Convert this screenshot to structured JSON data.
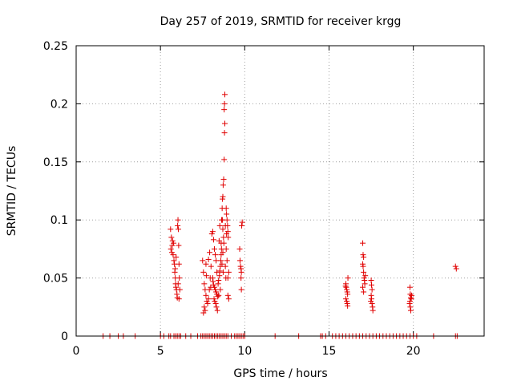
{
  "chart_data": {
    "type": "scatter",
    "title": "Day 257 of 2019, SRMTID for receiver krgg",
    "xlabel": "GPS time / hours",
    "ylabel": "SRMTID / TECUs",
    "xlim": [
      0,
      24.2
    ],
    "ylim": [
      0,
      0.25
    ],
    "xticks": [
      0,
      5,
      10,
      15,
      20
    ],
    "xtick_labels": [
      "0",
      "5",
      "10",
      "15",
      "20"
    ],
    "yticks": [
      0,
      0.05,
      0.1,
      0.15,
      0.2,
      0.25
    ],
    "ytick_labels": [
      "0",
      "0.05",
      "0.1",
      "0.15",
      "0.2",
      "0.25"
    ],
    "grid": true,
    "marker": "+",
    "series": [
      {
        "name": "SRMTID",
        "color": "#e00000",
        "points": [
          [
            1.6,
            0
          ],
          [
            2.0,
            0
          ],
          [
            2.5,
            0
          ],
          [
            2.8,
            0
          ],
          [
            3.5,
            0
          ],
          [
            5.0,
            0
          ],
          [
            5.2,
            0
          ],
          [
            5.5,
            0
          ],
          [
            5.6,
            0
          ],
          [
            5.8,
            0
          ],
          [
            5.9,
            0
          ],
          [
            6.0,
            0
          ],
          [
            6.1,
            0
          ],
          [
            6.2,
            0
          ],
          [
            6.5,
            0
          ],
          [
            6.8,
            0
          ],
          [
            7.2,
            0
          ],
          [
            7.4,
            0
          ],
          [
            7.5,
            0
          ],
          [
            7.6,
            0
          ],
          [
            7.7,
            0
          ],
          [
            7.8,
            0
          ],
          [
            7.9,
            0
          ],
          [
            8.0,
            0
          ],
          [
            8.1,
            0
          ],
          [
            8.2,
            0
          ],
          [
            8.3,
            0
          ],
          [
            8.4,
            0
          ],
          [
            8.5,
            0
          ],
          [
            8.6,
            0
          ],
          [
            8.7,
            0
          ],
          [
            8.8,
            0
          ],
          [
            8.9,
            0
          ],
          [
            9.0,
            0
          ],
          [
            9.2,
            0
          ],
          [
            9.4,
            0
          ],
          [
            9.5,
            0
          ],
          [
            9.6,
            0
          ],
          [
            9.7,
            0
          ],
          [
            9.8,
            0
          ],
          [
            9.9,
            0
          ],
          [
            10.0,
            0
          ],
          [
            11.8,
            0
          ],
          [
            13.2,
            0
          ],
          [
            14.5,
            0
          ],
          [
            14.6,
            0
          ],
          [
            14.8,
            0
          ],
          [
            15.2,
            0
          ],
          [
            15.4,
            0
          ],
          [
            15.6,
            0
          ],
          [
            15.8,
            0
          ],
          [
            16.0,
            0
          ],
          [
            16.2,
            0
          ],
          [
            16.4,
            0
          ],
          [
            16.6,
            0
          ],
          [
            16.8,
            0
          ],
          [
            17.0,
            0
          ],
          [
            17.2,
            0
          ],
          [
            17.4,
            0
          ],
          [
            17.6,
            0
          ],
          [
            17.8,
            0
          ],
          [
            18.0,
            0
          ],
          [
            18.2,
            0
          ],
          [
            18.4,
            0
          ],
          [
            18.6,
            0
          ],
          [
            18.8,
            0
          ],
          [
            19.0,
            0
          ],
          [
            19.2,
            0
          ],
          [
            19.4,
            0
          ],
          [
            19.6,
            0
          ],
          [
            19.8,
            0
          ],
          [
            20.0,
            0
          ],
          [
            20.2,
            0
          ],
          [
            21.2,
            0
          ],
          [
            22.5,
            0
          ],
          [
            22.6,
            0
          ],
          [
            5.6,
            0.092
          ],
          [
            5.65,
            0.085
          ],
          [
            5.7,
            0.078
          ],
          [
            5.62,
            0.075
          ],
          [
            5.68,
            0.072
          ],
          [
            5.75,
            0.07
          ],
          [
            5.8,
            0.065
          ],
          [
            5.72,
            0.082
          ],
          [
            5.78,
            0.08
          ],
          [
            5.83,
            0.062
          ],
          [
            5.85,
            0.055
          ],
          [
            5.88,
            0.05
          ],
          [
            5.9,
            0.045
          ],
          [
            5.92,
            0.042
          ],
          [
            5.95,
            0.04
          ],
          [
            5.98,
            0.036
          ],
          [
            6.0,
            0.033
          ],
          [
            6.05,
            0.045
          ],
          [
            6.02,
            0.095
          ],
          [
            6.04,
            0.1
          ],
          [
            6.06,
            0.092
          ],
          [
            6.08,
            0.078
          ],
          [
            6.1,
            0.062
          ],
          [
            6.12,
            0.05
          ],
          [
            6.15,
            0.04
          ],
          [
            6.1,
            0.032
          ],
          [
            5.87,
            0.058
          ],
          [
            5.93,
            0.068
          ],
          [
            7.5,
            0.065
          ],
          [
            7.55,
            0.055
          ],
          [
            7.6,
            0.045
          ],
          [
            7.65,
            0.04
          ],
          [
            7.7,
            0.035
          ],
          [
            7.75,
            0.03
          ],
          [
            7.6,
            0.025
          ],
          [
            7.65,
            0.022
          ],
          [
            7.55,
            0.02
          ],
          [
            7.8,
            0.028
          ],
          [
            7.85,
            0.032
          ],
          [
            7.9,
            0.04
          ],
          [
            7.95,
            0.05
          ],
          [
            8.0,
            0.06
          ],
          [
            7.7,
            0.062
          ],
          [
            7.85,
            0.066
          ],
          [
            8.05,
            0.088
          ],
          [
            8.1,
            0.09
          ],
          [
            8.15,
            0.083
          ],
          [
            8.2,
            0.075
          ],
          [
            8.25,
            0.07
          ],
          [
            8.3,
            0.065
          ],
          [
            8.35,
            0.055
          ],
          [
            8.1,
            0.05
          ],
          [
            8.12,
            0.047
          ],
          [
            8.15,
            0.044
          ],
          [
            8.2,
            0.042
          ],
          [
            8.25,
            0.04
          ],
          [
            8.3,
            0.038
          ],
          [
            8.35,
            0.036
          ],
          [
            8.4,
            0.034
          ],
          [
            8.18,
            0.032
          ],
          [
            8.22,
            0.03
          ],
          [
            8.28,
            0.028
          ],
          [
            8.32,
            0.025
          ],
          [
            8.38,
            0.022
          ],
          [
            8.42,
            0.045
          ],
          [
            8.45,
            0.048
          ],
          [
            8.5,
            0.052
          ],
          [
            8.52,
            0.056
          ],
          [
            8.55,
            0.06
          ],
          [
            8.58,
            0.065
          ],
          [
            8.6,
            0.07
          ],
          [
            8.62,
            0.075
          ],
          [
            8.48,
            0.082
          ],
          [
            8.52,
            0.095
          ],
          [
            8.55,
            0.04
          ],
          [
            8.45,
            0.035
          ],
          [
            7.98,
            0.042
          ],
          [
            7.72,
            0.052
          ],
          [
            7.92,
            0.072
          ],
          [
            8.6,
            0.08
          ],
          [
            8.63,
            0.1
          ],
          [
            8.66,
            0.11
          ],
          [
            8.68,
            0.118
          ],
          [
            8.7,
            0.12
          ],
          [
            8.72,
            0.13
          ],
          [
            8.75,
            0.135
          ],
          [
            8.78,
            0.152
          ],
          [
            8.8,
            0.175
          ],
          [
            8.82,
            0.183
          ],
          [
            8.78,
            0.195
          ],
          [
            8.8,
            0.2
          ],
          [
            8.82,
            0.208
          ],
          [
            8.68,
            0.1
          ],
          [
            8.7,
            0.092
          ],
          [
            8.74,
            0.085
          ],
          [
            8.76,
            0.08
          ],
          [
            8.85,
            0.095
          ],
          [
            8.9,
            0.11
          ],
          [
            8.92,
            0.105
          ],
          [
            8.95,
            0.1
          ],
          [
            8.98,
            0.095
          ],
          [
            9.0,
            0.09
          ],
          [
            9.02,
            0.085
          ],
          [
            8.9,
            0.075
          ],
          [
            8.95,
            0.065
          ],
          [
            8.85,
            0.06
          ],
          [
            9.0,
            0.05
          ],
          [
            9.05,
            0.055
          ],
          [
            8.88,
            0.05
          ],
          [
            9.0,
            0.035
          ],
          [
            9.05,
            0.032
          ],
          [
            8.72,
            0.055
          ],
          [
            8.65,
            0.062
          ],
          [
            8.7,
            0.072
          ],
          [
            8.92,
            0.088
          ],
          [
            9.7,
            0.075
          ],
          [
            9.72,
            0.065
          ],
          [
            9.75,
            0.06
          ],
          [
            9.78,
            0.058
          ],
          [
            9.8,
            0.055
          ],
          [
            9.82,
            0.095
          ],
          [
            9.85,
            0.098
          ],
          [
            9.8,
            0.04
          ],
          [
            9.78,
            0.05
          ],
          [
            16.0,
            0.045
          ],
          [
            16.02,
            0.042
          ],
          [
            16.05,
            0.04
          ],
          [
            16.08,
            0.038
          ],
          [
            16.1,
            0.036
          ],
          [
            16.0,
            0.032
          ],
          [
            16.05,
            0.03
          ],
          [
            16.08,
            0.028
          ],
          [
            16.1,
            0.026
          ],
          [
            16.12,
            0.05
          ],
          [
            15.98,
            0.043
          ],
          [
            17.0,
            0.08
          ],
          [
            17.02,
            0.07
          ],
          [
            17.05,
            0.068
          ],
          [
            17.0,
            0.062
          ],
          [
            17.02,
            0.06
          ],
          [
            17.05,
            0.055
          ],
          [
            17.08,
            0.05
          ],
          [
            17.1,
            0.048
          ],
          [
            17.12,
            0.045
          ],
          [
            17.0,
            0.042
          ],
          [
            17.05,
            0.038
          ],
          [
            17.15,
            0.052
          ],
          [
            17.5,
            0.048
          ],
          [
            17.52,
            0.044
          ],
          [
            17.55,
            0.04
          ],
          [
            17.5,
            0.035
          ],
          [
            17.52,
            0.032
          ],
          [
            17.55,
            0.028
          ],
          [
            17.58,
            0.025
          ],
          [
            17.6,
            0.022
          ],
          [
            17.48,
            0.03
          ],
          [
            19.8,
            0.042
          ],
          [
            19.82,
            0.036
          ],
          [
            19.85,
            0.033
          ],
          [
            19.8,
            0.03
          ],
          [
            19.82,
            0.025
          ],
          [
            19.85,
            0.022
          ],
          [
            19.88,
            0.032
          ],
          [
            19.9,
            0.035
          ],
          [
            19.78,
            0.028
          ],
          [
            22.5,
            0.06
          ],
          [
            22.55,
            0.058
          ]
        ]
      }
    ]
  }
}
